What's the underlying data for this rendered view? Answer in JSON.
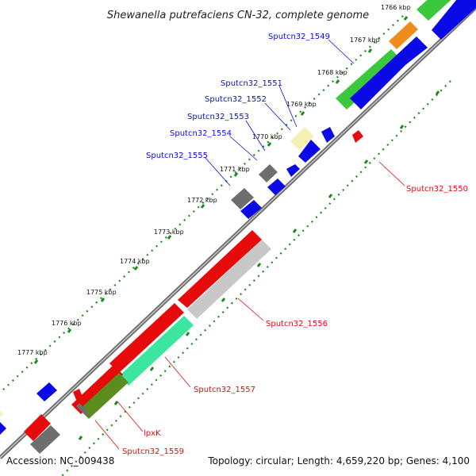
{
  "title": "Shewanella putrefaciens CN-32, complete genome",
  "footer": {
    "accession": "Accession: NC_009438",
    "summary": "Topology: circular; Length: 4,659,220 bp; Genes: 4,100"
  },
  "colors": {
    "forward_cds": "#0a0ae6",
    "reverse_cds": "#e60a0a",
    "backbone": "#7a7a7a",
    "tick": "#1a8a1a",
    "green_feature": "#3cc83c",
    "orange_feature": "#f08c1e",
    "mint_feature": "#3ce6a0",
    "olive_feature": "#5a8c1e",
    "gray_feature": "#6e6e6e",
    "light_gray_feature": "#c8c8c8",
    "pale_yellow_feature": "#f5f0b4"
  },
  "kbp_ticks": [
    {
      "kbp": 1766,
      "label": "1766 kbp"
    },
    {
      "kbp": 1767,
      "label": "1767 kbp"
    },
    {
      "kbp": 1768,
      "label": "1768 kbp"
    },
    {
      "kbp": 1769,
      "label": "1769 kbp"
    },
    {
      "kbp": 1770,
      "label": "1770 kbp"
    },
    {
      "kbp": 1771,
      "label": "1771 kbp"
    },
    {
      "kbp": 1772,
      "label": "1772 kbp"
    },
    {
      "kbp": 1773,
      "label": "1773 kbp"
    },
    {
      "kbp": 1774,
      "label": "1774 kbp"
    },
    {
      "kbp": 1775,
      "label": "1775 kbp"
    },
    {
      "kbp": 1776,
      "label": "1776 kbp"
    },
    {
      "kbp": 1777,
      "label": "1777 kbp"
    }
  ],
  "gene_labels": [
    {
      "name": "Sputcn32_1549",
      "strand": "forward"
    },
    {
      "name": "Sputcn32_1551",
      "strand": "forward"
    },
    {
      "name": "Sputcn32_1552",
      "strand": "forward"
    },
    {
      "name": "Sputcn32_1553",
      "strand": "forward"
    },
    {
      "name": "Sputcn32_1554",
      "strand": "forward"
    },
    {
      "name": "Sputcn32_1555",
      "strand": "forward"
    },
    {
      "name": "Sputcn32_1550",
      "strand": "reverse"
    },
    {
      "name": "Sputcn32_1556",
      "strand": "reverse"
    },
    {
      "name": "Sputcn32_1557",
      "strand": "reverse"
    },
    {
      "name": "lpxK",
      "strand": "reverse"
    },
    {
      "name": "Sputcn32_1559",
      "strand": "reverse"
    }
  ]
}
